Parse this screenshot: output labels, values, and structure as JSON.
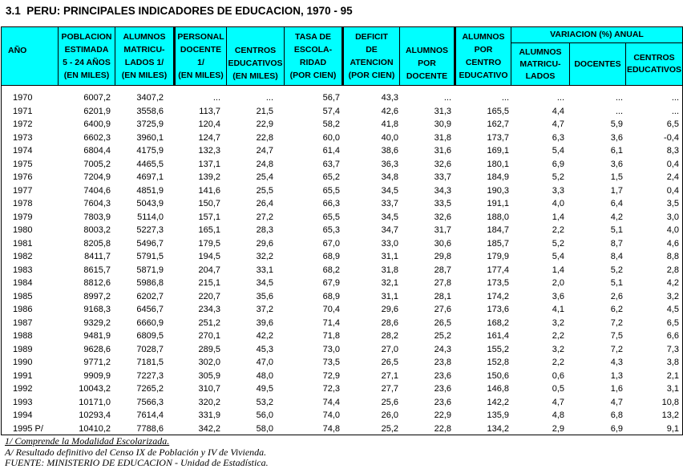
{
  "title": "3.1  PERU: PRINCIPALES INDICADORES DE EDUCACION, 1970 - 95",
  "colors": {
    "header_bg": "#00FFFF",
    "border": "#000000",
    "page_bg": "#FFFFFF",
    "text": "#000000"
  },
  "table": {
    "headers": {
      "ano": "AÑO",
      "poblacion": "POBLACION\nESTIMADA\n5 - 24 AÑOS\n(EN MILES)",
      "alumnos_matriculados": "ALUMNOS\nMATRICU-\nLADOS 1/\n(EN MILES)",
      "personal_docente": "PERSONAL\nDOCENTE\n1/\n(EN MILES)",
      "centros_educativos": "CENTROS\nEDUCATIVOS\n(EN MILES)",
      "tasa_escolaridad": "TASA DE\nESCOLA-\nRIDAD\n(POR CIEN)",
      "deficit_atencion": "DEFICIT\nDE\nATENCION\n(POR CIEN)",
      "alumnos_por_docente": "ALUMNOS\nPOR\nDOCENTE",
      "alumnos_por_centro": "ALUMNOS\nPOR\nCENTRO\nEDUCATIVO",
      "variacion_anual": "VARIACION (%) ANUAL",
      "var_alumnos": "ALUMNOS\nMATRICU-\nLADOS",
      "var_docentes": "DOCENTES",
      "var_centros": "CENTROS\nEDUCATIVOS"
    },
    "rows": [
      [
        "1970",
        "6007,2",
        "3407,2",
        "...",
        "...",
        "56,7",
        "43,3",
        "...",
        "...",
        "...",
        "...",
        "..."
      ],
      [
        "1971",
        "6201,9",
        "3558,6",
        "113,7",
        "21,5",
        "57,4",
        "42,6",
        "31,3",
        "165,5",
        "4,4",
        "...",
        "..."
      ],
      [
        "1972",
        "6400,9",
        "3725,9",
        "120,4",
        "22,9",
        "58,2",
        "41,8",
        "30,9",
        "162,7",
        "4,7",
        "5,9",
        "6,5"
      ],
      [
        "1973",
        "6602,3",
        "3960,1",
        "124,7",
        "22,8",
        "60,0",
        "40,0",
        "31,8",
        "173,7",
        "6,3",
        "3,6",
        "-0,4"
      ],
      [
        "1974",
        "6804,4",
        "4175,9",
        "132,3",
        "24,7",
        "61,4",
        "38,6",
        "31,6",
        "169,1",
        "5,4",
        "6,1",
        "8,3"
      ],
      [
        "1975",
        "7005,2",
        "4465,5",
        "137,1",
        "24,8",
        "63,7",
        "36,3",
        "32,6",
        "180,1",
        "6,9",
        "3,6",
        "0,4"
      ],
      [
        "1976",
        "7204,9",
        "4697,1",
        "139,2",
        "25,4",
        "65,2",
        "34,8",
        "33,7",
        "184,9",
        "5,2",
        "1,5",
        "2,4"
      ],
      [
        "1977",
        "7404,6",
        "4851,9",
        "141,6",
        "25,5",
        "65,5",
        "34,5",
        "34,3",
        "190,3",
        "3,3",
        "1,7",
        "0,4"
      ],
      [
        "1978",
        "7604,3",
        "5043,9",
        "150,7",
        "26,4",
        "66,3",
        "33,7",
        "33,5",
        "191,1",
        "4,0",
        "6,4",
        "3,5"
      ],
      [
        "1979",
        "7803,9",
        "5114,0",
        "157,1",
        "27,2",
        "65,5",
        "34,5",
        "32,6",
        "188,0",
        "1,4",
        "4,2",
        "3,0"
      ],
      [
        "1980",
        "8003,2",
        "5227,3",
        "165,1",
        "28,3",
        "65,3",
        "34,7",
        "31,7",
        "184,7",
        "2,2",
        "5,1",
        "4,0"
      ],
      [
        "1981",
        "8205,8",
        "5496,7",
        "179,5",
        "29,6",
        "67,0",
        "33,0",
        "30,6",
        "185,7",
        "5,2",
        "8,7",
        "4,6"
      ],
      [
        "1982",
        "8411,7",
        "5791,5",
        "194,5",
        "32,2",
        "68,9",
        "31,1",
        "29,8",
        "179,9",
        "5,4",
        "8,4",
        "8,8"
      ],
      [
        "1983",
        "8615,7",
        "5871,9",
        "204,7",
        "33,1",
        "68,2",
        "31,8",
        "28,7",
        "177,4",
        "1,4",
        "5,2",
        "2,8"
      ],
      [
        "1984",
        "8812,6",
        "5986,8",
        "215,1",
        "34,5",
        "67,9",
        "32,1",
        "27,8",
        "173,5",
        "2,0",
        "5,1",
        "4,2"
      ],
      [
        "1985",
        "8997,2",
        "6202,7",
        "220,7",
        "35,6",
        "68,9",
        "31,1",
        "28,1",
        "174,2",
        "3,6",
        "2,6",
        "3,2"
      ],
      [
        "1986",
        "9168,3",
        "6456,7",
        "234,3",
        "37,2",
        "70,4",
        "29,6",
        "27,6",
        "173,6",
        "4,1",
        "6,2",
        "4,5"
      ],
      [
        "1987",
        "9329,2",
        "6660,9",
        "251,2",
        "39,6",
        "71,4",
        "28,6",
        "26,5",
        "168,2",
        "3,2",
        "7,2",
        "6,5"
      ],
      [
        "1988",
        "9481,9",
        "6809,5",
        "270,1",
        "42,2",
        "71,8",
        "28,2",
        "25,2",
        "161,4",
        "2,2",
        "7,5",
        "6,6"
      ],
      [
        "1989",
        "9628,6",
        "7028,7",
        "289,5",
        "45,3",
        "73,0",
        "27,0",
        "24,3",
        "155,2",
        "3,2",
        "7,2",
        "7,3"
      ],
      [
        "1990",
        "9771,2",
        "7181,5",
        "302,0",
        "47,0",
        "73,5",
        "26,5",
        "23,8",
        "152,8",
        "2,2",
        "4,3",
        "3,8"
      ],
      [
        "1991",
        "9909,9",
        "7227,3",
        "305,9",
        "48,0",
        "72,9",
        "27,1",
        "23,6",
        "150,6",
        "0,6",
        "1,3",
        "2,1"
      ],
      [
        "1992",
        "10043,2",
        "7265,2",
        "310,7",
        "49,5",
        "72,3",
        "27,7",
        "23,6",
        "146,8",
        "0,5",
        "1,6",
        "3,1"
      ],
      [
        "1993",
        "10171,0",
        "7566,3",
        "320,2",
        "53,2",
        "74,4",
        "25,6",
        "23,6",
        "142,2",
        "4,7",
        "4,7",
        "10,8"
      ],
      [
        "1994",
        "10293,4",
        "7614,4",
        "331,9",
        "56,0",
        "74,0",
        "26,0",
        "22,9",
        "135,9",
        "4,8",
        "6,8",
        "13,2"
      ],
      [
        "1995 P/",
        "10410,2",
        "7788,6",
        "342,2",
        "58,0",
        "74,8",
        "25,2",
        "22,8",
        "134,2",
        "2,9",
        "6,9",
        "9,1"
      ]
    ]
  },
  "footnotes": {
    "note1": "1/ Comprende la Modalidad Escolarizada.",
    "note2": "A/ Resultado definitivo del Censo IX de Población y IV de Vivienda.",
    "fuente": "FUENTE: MINISTERIO DE EDUCACION - Unidad de Estadística."
  }
}
